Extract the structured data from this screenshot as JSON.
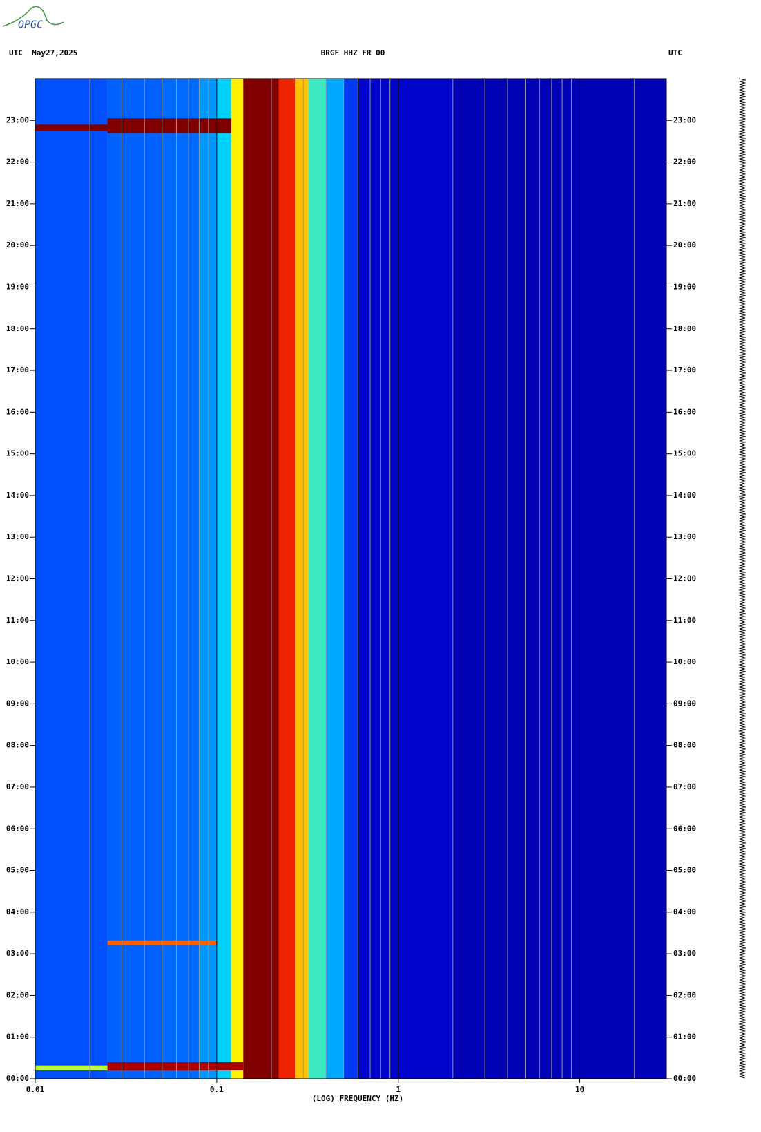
{
  "logo": "OPGC",
  "chart_data": {
    "type": "spectrogram",
    "title": "BRGF HHZ FR 00",
    "left_header": "UTC  May27,2025",
    "right_header": "UTC",
    "x_label": "(LOG) FREQUENCY (HZ)",
    "x_scale": "log",
    "xlim": [
      0.01,
      30
    ],
    "xticks": [
      0.01,
      0.1,
      1,
      10
    ],
    "xgrid_minor": [
      0.02,
      0.03,
      0.04,
      0.05,
      0.06,
      0.07,
      0.08,
      0.09,
      0.2,
      0.3,
      0.4,
      0.5,
      0.6,
      0.7,
      0.8,
      0.9,
      2,
      3,
      4,
      5,
      6,
      7,
      8,
      9,
      20
    ],
    "ylim": [
      0,
      24
    ],
    "yticks": [
      {
        "value": 0,
        "label": "00:00"
      },
      {
        "value": 1,
        "label": "01:00"
      },
      {
        "value": 2,
        "label": "02:00"
      },
      {
        "value": 3,
        "label": "03:00"
      },
      {
        "value": 4,
        "label": "04:00"
      },
      {
        "value": 5,
        "label": "05:00"
      },
      {
        "value": 6,
        "label": "06:00"
      },
      {
        "value": 7,
        "label": "07:00"
      },
      {
        "value": 8,
        "label": "08:00"
      },
      {
        "value": 9,
        "label": "09:00"
      },
      {
        "value": 10,
        "label": "10:00"
      },
      {
        "value": 11,
        "label": "11:00"
      },
      {
        "value": 12,
        "label": "12:00"
      },
      {
        "value": 13,
        "label": "13:00"
      },
      {
        "value": 14,
        "label": "14:00"
      },
      {
        "value": 15,
        "label": "15:00"
      },
      {
        "value": 16,
        "label": "16:00"
      },
      {
        "value": 17,
        "label": "17:00"
      },
      {
        "value": 18,
        "label": "18:00"
      },
      {
        "value": 19,
        "label": "19:00"
      },
      {
        "value": 20,
        "label": "20:00"
      },
      {
        "value": 21,
        "label": "21:00"
      },
      {
        "value": 22,
        "label": "22:00"
      },
      {
        "value": 23,
        "label": "23:00"
      }
    ],
    "bins": [
      0.01,
      0.025,
      0.05,
      0.08,
      0.1,
      0.12,
      0.14,
      0.22,
      0.27,
      0.32,
      0.4,
      0.5,
      0.6,
      2,
      30
    ],
    "levels": [
      0.3,
      0.32,
      0.33,
      0.38,
      0.45,
      0.65,
      1,
      0.85,
      0.7,
      0.5,
      0.4,
      0.25,
      0.13,
      0.08
    ],
    "events": [
      {
        "t": 22.75,
        "dt": 0.15,
        "f": [
          0.01,
          0.025
        ],
        "level": 1
      },
      {
        "t": 22.7,
        "dt": 0.35,
        "f": [
          0.025,
          0.12
        ],
        "level": 1
      },
      {
        "t": 0.2,
        "dt": 0.12,
        "f": [
          0.01,
          0.025
        ],
        "level": 0.6
      },
      {
        "t": 0.2,
        "dt": 0.2,
        "f": [
          0.025,
          0.14
        ],
        "level": 0.95
      },
      {
        "t": 3.2,
        "dt": 0.12,
        "f": [
          0.025,
          0.1
        ],
        "level": 0.8
      }
    ]
  }
}
